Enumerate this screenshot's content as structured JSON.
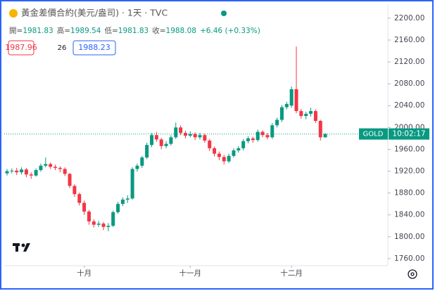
{
  "chart_data": {
    "type": "candlestick",
    "title": "黃金差價合約(美元/盎司) · 1天 · TVC",
    "ohlc_legend": [
      {
        "label": "開=",
        "value": "1981.83"
      },
      {
        "label": "高=",
        "value": "1989.54"
      },
      {
        "label": "低=",
        "value": "1981.83"
      },
      {
        "label": "收=",
        "value": "1988.08"
      }
    ],
    "change_text": "+6.46 (+0.33%)",
    "bid": "1987.96",
    "spread": "26",
    "ask": "1988.23",
    "symbol": "GOLD",
    "countdown": "10:02:17",
    "up_color": "#089981",
    "down_color": "#f23645",
    "categories": [
      null,
      null,
      null,
      null,
      null,
      null,
      null,
      null,
      null,
      null,
      null,
      null,
      null,
      null,
      null,
      null,
      "十月",
      null,
      null,
      null,
      null,
      null,
      null,
      null,
      null,
      null,
      null,
      null,
      null,
      null,
      null,
      null,
      null,
      null,
      null,
      null,
      null,
      null,
      "十一月",
      null,
      null,
      null,
      null,
      null,
      null,
      null,
      null,
      null,
      null,
      null,
      null,
      null,
      null,
      null,
      null,
      null,
      null,
      null,
      null,
      "十二月",
      null,
      null,
      null,
      null,
      null,
      null,
      null
    ],
    "open": [
      1916,
      1920,
      1921,
      1918,
      1923,
      1914,
      1912,
      1922,
      1930,
      1933,
      1928,
      1926,
      1924,
      1915,
      1893,
      1878,
      1862,
      1846,
      1828,
      1822,
      1824,
      1818,
      1820,
      1845,
      1860,
      1868,
      1870,
      1924,
      1930,
      1945,
      1968,
      1986,
      1978,
      1966,
      1970,
      1982,
      2000,
      1990,
      1985,
      1988,
      1982,
      1986,
      1976,
      1962,
      1952,
      1946,
      1938,
      1948,
      1958,
      1962,
      1975,
      1980,
      1977,
      1992,
      1986,
      1982,
      2004,
      2014,
      2037,
      2040,
      2070,
      2030,
      2021,
      2025,
      2030,
      2012,
      1981.83
    ],
    "high": [
      1924,
      1925,
      1926,
      1927,
      1926,
      1918,
      1925,
      1934,
      1945,
      1936,
      1932,
      1929,
      1927,
      1917,
      1896,
      1881,
      1866,
      1849,
      1832,
      1829,
      1827,
      1825,
      1848,
      1864,
      1872,
      1876,
      1927,
      1934,
      1948,
      1972,
      1990,
      1992,
      1981,
      1975,
      1986,
      2009,
      2004,
      1994,
      1993,
      1991,
      1990,
      1989,
      1979,
      1965,
      1956,
      1950,
      1952,
      1962,
      1966,
      1979,
      1984,
      1983,
      1996,
      1995,
      1990,
      2008,
      2018,
      2041,
      2047,
      2075,
      2148,
      2034,
      2029,
      2036,
      2033,
      2014,
      1989.54
    ],
    "low": [
      1912,
      1916,
      1913,
      1914,
      1909,
      1906,
      1910,
      1919,
      1927,
      1924,
      1922,
      1918,
      1911,
      1889,
      1873,
      1857,
      1840,
      1822,
      1817,
      1818,
      1812,
      1810,
      1818,
      1842,
      1856,
      1862,
      1868,
      1919,
      1926,
      1942,
      1964,
      1974,
      1960,
      1962,
      1967,
      1979,
      1986,
      1980,
      1982,
      1977,
      1978,
      1972,
      1957,
      1947,
      1940,
      1932,
      1935,
      1945,
      1954,
      1958,
      1971,
      1972,
      1974,
      1982,
      1978,
      1979,
      2000,
      2010,
      2033,
      2036,
      2026,
      2016,
      2015,
      2020,
      2008,
      1976,
      1981.83
    ],
    "close": [
      1920,
      1921,
      1918,
      1923,
      1914,
      1912,
      1922,
      1930,
      1933,
      1928,
      1926,
      1924,
      1915,
      1893,
      1878,
      1862,
      1846,
      1828,
      1822,
      1824,
      1818,
      1820,
      1845,
      1860,
      1868,
      1870,
      1924,
      1930,
      1945,
      1968,
      1986,
      1978,
      1966,
      1970,
      1982,
      2000,
      1990,
      1985,
      1988,
      1982,
      1986,
      1976,
      1962,
      1952,
      1946,
      1938,
      1948,
      1958,
      1962,
      1975,
      1980,
      1977,
      1992,
      1986,
      1982,
      2004,
      2014,
      2037,
      2043,
      2070,
      2030,
      2021,
      2025,
      2030,
      2012,
      1982,
      1988.08
    ],
    "ylim": [
      1747,
      2223
    ],
    "yticks": [
      {
        "value": 2200,
        "label": "2200.00"
      },
      {
        "value": 2160,
        "label": "2160.00"
      },
      {
        "value": 2120,
        "label": "2120.00"
      },
      {
        "value": 2080,
        "label": "2080.00"
      },
      {
        "value": 2040,
        "label": "2040.00"
      },
      {
        "value": 2000,
        "label": "2000.00"
      },
      {
        "value": 1960,
        "label": "1960.00"
      },
      {
        "value": 1920,
        "label": "1920.00"
      },
      {
        "value": 1880,
        "label": "1880.00"
      },
      {
        "value": 1840,
        "label": "1840.00"
      },
      {
        "value": 1800,
        "label": "1800.00"
      },
      {
        "value": 1760,
        "label": "1760.00"
      }
    ],
    "grid": false
  }
}
